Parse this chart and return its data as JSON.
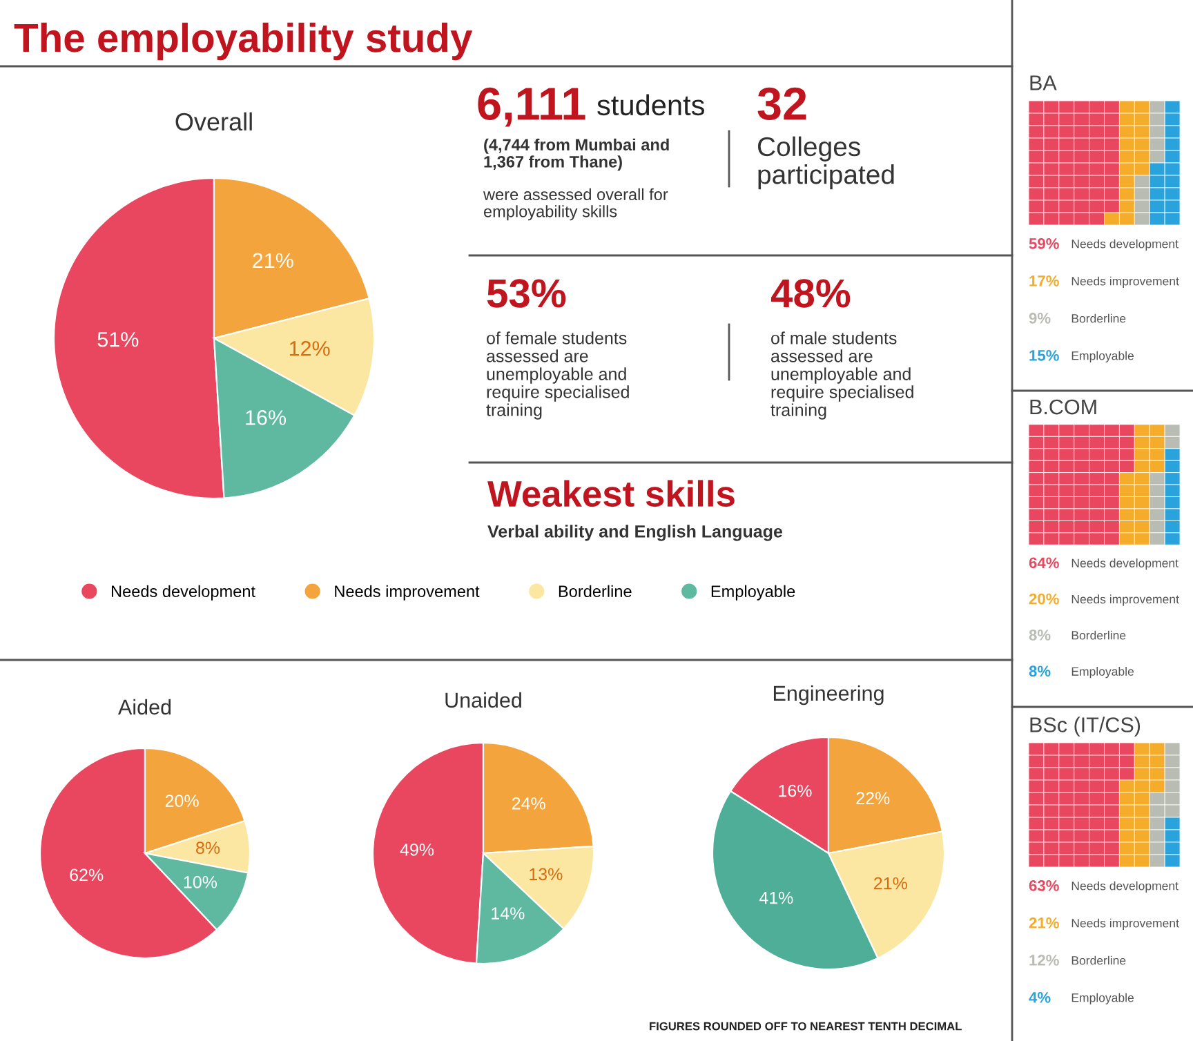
{
  "chart_data": [
    {
      "type": "other",
      "title": "The employability study",
      "annotations": [
        "6,111",
        "students",
        "(4,744 from Mumbai and\n1,367 from Thane)",
        "were assessed overall for\nemployability skills",
        "32",
        "Colleges\nparticipated",
        "53%",
        "of female students\nassessed are\nunemployable and\nrequire specialised\ntraining",
        "48%",
        "of male students\nassessed are\nunemployable and\nrequire specialised\ntraining",
        "Weakest skills",
        "Verbal ability and English Language",
        "FIGURES ROUNDED OFF TO NEAREST TENTH DECIMAL"
      ]
    },
    {
      "type": "pie",
      "title": "Overall",
      "categories": [
        "Needs development",
        "Needs improvement",
        "Borderline",
        "Employable"
      ],
      "values": [
        51,
        21,
        12,
        16
      ],
      "value_labels": [
        "51%",
        "21%",
        "12%",
        "16%"
      ],
      "colors": [
        "#e8475f",
        "#f4a43c",
        "#fbe7a1",
        "#5fb8a0"
      ],
      "legend": "bottom"
    },
    {
      "type": "pie",
      "title": "Aided",
      "categories": [
        null,
        null,
        null,
        null
      ],
      "values": [
        62,
        20,
        8,
        10
      ],
      "value_labels": [
        "62%",
        "20%",
        "8%",
        "10%"
      ],
      "colors": [
        "#e8475f",
        "#f4a43c",
        "#fbe7a1",
        "#5fb8a0"
      ]
    },
    {
      "type": "pie",
      "title": "Unaided",
      "categories": [
        null,
        null,
        null,
        null
      ],
      "values": [
        49,
        24,
        13,
        14
      ],
      "value_labels": [
        "49%",
        "24%",
        "13%",
        "14%"
      ],
      "colors": [
        "#e8475f",
        "#f4a43c",
        "#fbe7a1",
        "#5fb8a0"
      ]
    },
    {
      "type": "pie",
      "title": "Engineering",
      "categories": [
        null,
        null,
        null,
        null
      ],
      "values": [
        16,
        22,
        21,
        41
      ],
      "value_labels": [
        "16%",
        "22%",
        "21%",
        "41%"
      ],
      "colors": [
        "#e8475f",
        "#f4a43c",
        "#fbe7a1",
        "#4fae97"
      ]
    },
    {
      "type": "other",
      "title": "BA",
      "categories": [
        "Needs development",
        "Needs improvement",
        "Borderline",
        "Employable"
      ],
      "values": [
        59,
        17,
        9,
        15
      ],
      "value_labels": [
        "59%",
        "17%",
        "9%",
        "15%"
      ],
      "colors": [
        "#e8475f",
        "#f5ac2a",
        "#b9bcb3",
        "#2aa3dc"
      ]
    },
    {
      "type": "other",
      "title": "B.COM",
      "categories": [
        "Needs development",
        "Needs improvement",
        "Borderline",
        "Employable"
      ],
      "values": [
        64,
        20,
        8,
        8
      ],
      "value_labels": [
        "64%",
        "20%",
        "8%",
        "8%"
      ],
      "colors": [
        "#e8475f",
        "#f5ac2a",
        "#b9bcb3",
        "#2aa3dc"
      ]
    },
    {
      "type": "other",
      "title": "BSc (IT/CS)",
      "categories": [
        "Needs development",
        "Needs improvement",
        "Borderline",
        "Employable"
      ],
      "values": [
        63,
        21,
        12,
        4
      ],
      "value_labels": [
        "63%",
        "21%",
        "12%",
        "4%"
      ],
      "colors": [
        "#e8475f",
        "#f5ac2a",
        "#b9bcb3",
        "#2aa3dc"
      ]
    }
  ]
}
